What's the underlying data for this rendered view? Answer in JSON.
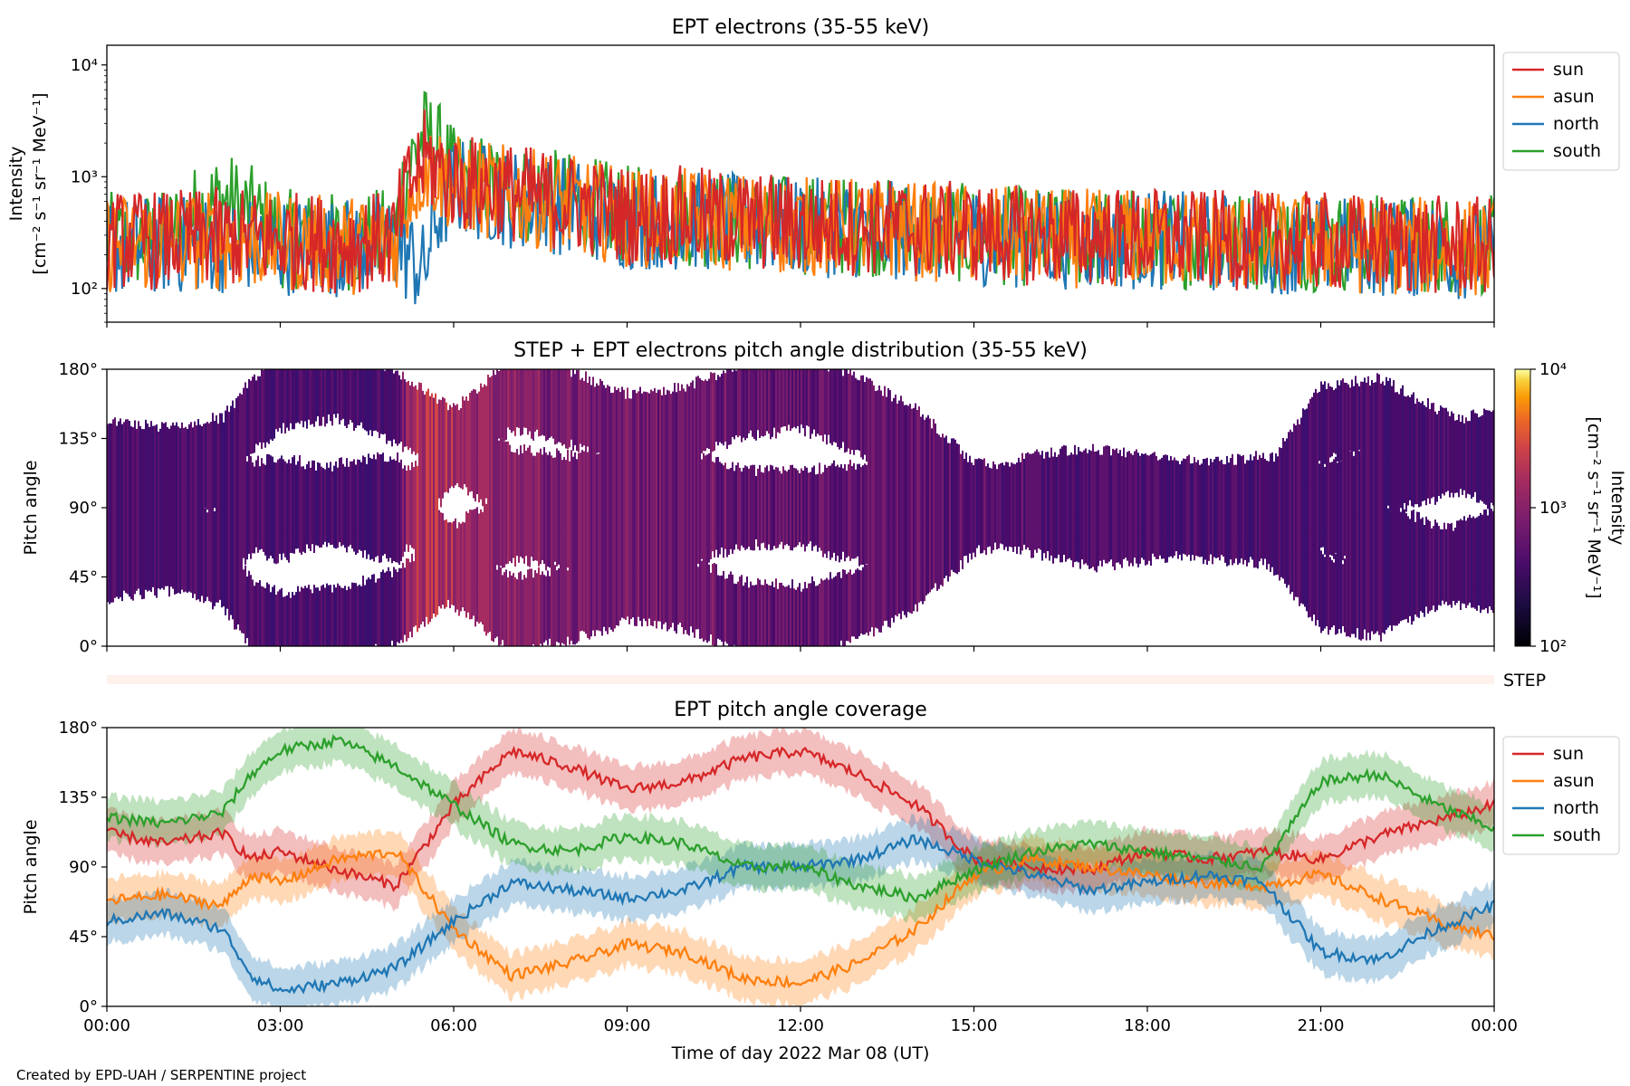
{
  "figure": {
    "credit": "Created by EPD-UAH / SERPENTINE project",
    "xlabel": "Time of day 2022 Mar 08 (UT)",
    "x_ticks": [
      "00:00",
      "03:00",
      "06:00",
      "09:00",
      "12:00",
      "15:00",
      "18:00",
      "21:00",
      "00:00"
    ]
  },
  "chart_data": [
    {
      "type": "line",
      "title": "EPT electrons (35-55 keV)",
      "ylabel_lines": [
        "Intensity",
        "[cm⁻² s⁻¹ sr⁻¹ MeV⁻¹]"
      ],
      "yscale": "log",
      "ylim": [
        50,
        15000
      ],
      "y_ticks": [
        "10²",
        "10³",
        "10⁴"
      ],
      "x_hours": [
        0,
        1,
        2,
        3,
        4,
        5,
        5.5,
        6,
        7,
        8,
        9,
        10,
        11,
        12,
        13,
        14,
        15,
        16,
        17,
        18,
        19,
        20,
        21,
        22,
        23,
        24
      ],
      "series": [
        {
          "name": "sun",
          "color": "#d62728",
          "values": [
            300,
            300,
            320,
            300,
            280,
            300,
            1600,
            1000,
            800,
            650,
            500,
            500,
            450,
            420,
            400,
            380,
            350,
            330,
            320,
            320,
            300,
            300,
            290,
            280,
            270,
            260
          ]
        },
        {
          "name": "asun",
          "color": "#ff7f0e",
          "values": [
            280,
            290,
            300,
            290,
            270,
            280,
            1400,
            950,
            750,
            620,
            480,
            470,
            430,
            400,
            390,
            360,
            340,
            320,
            310,
            310,
            300,
            290,
            280,
            270,
            260,
            250
          ]
        },
        {
          "name": "north",
          "color": "#1f77b4",
          "values": [
            260,
            270,
            280,
            270,
            260,
            270,
            150,
            900,
            700,
            600,
            450,
            450,
            420,
            390,
            380,
            350,
            330,
            310,
            300,
            300,
            290,
            280,
            270,
            260,
            250,
            240
          ]
        },
        {
          "name": "south",
          "color": "#2ca02c",
          "values": [
            290,
            300,
            700,
            310,
            290,
            320,
            2600,
            1100,
            800,
            660,
            500,
            490,
            440,
            410,
            400,
            370,
            340,
            320,
            310,
            320,
            300,
            300,
            290,
            280,
            280,
            270
          ]
        }
      ],
      "legend": "outside-right"
    },
    {
      "type": "heatmap",
      "title": "STEP + EPT electrons pitch angle distribution (35-55 keV)",
      "ylabel": "Pitch angle",
      "ylim": [
        0,
        180
      ],
      "y_ticks": [
        "0°",
        "45°",
        "90°",
        "135°",
        "180°"
      ],
      "colorbar": {
        "label_lines": [
          "Intensity",
          "[cm⁻² s⁻¹ sr⁻¹ MeV⁻¹]"
        ],
        "scale": "log",
        "range": [
          100,
          10000
        ],
        "ticks": [
          "10²",
          "10³",
          "10⁴"
        ],
        "colormap": "inferno"
      }
    },
    {
      "type": "bar",
      "label": "STEP",
      "color": "#fff1ec"
    },
    {
      "type": "line",
      "title": "EPT pitch angle coverage",
      "ylabel": "Pitch angle",
      "ylim": [
        0,
        180
      ],
      "y_ticks": [
        "0°",
        "45°",
        "90°",
        "135°",
        "180°"
      ],
      "x_hours": [
        0,
        1,
        2,
        2.5,
        3,
        4,
        5,
        6,
        7,
        8,
        9,
        10,
        11,
        12,
        13,
        14,
        15,
        16,
        17,
        18,
        19,
        20,
        21,
        22,
        23,
        24
      ],
      "series": [
        {
          "name": "sun",
          "color": "#d62728",
          "values": [
            112,
            105,
            112,
            95,
            100,
            88,
            78,
            130,
            165,
            155,
            140,
            145,
            160,
            165,
            150,
            130,
            95,
            90,
            88,
            100,
            95,
            100,
            95,
            110,
            120,
            130
          ]
        },
        {
          "name": "asun",
          "color": "#ff7f0e",
          "values": [
            68,
            72,
            65,
            85,
            80,
            95,
            100,
            50,
            20,
            28,
            40,
            35,
            18,
            15,
            28,
            50,
            85,
            95,
            90,
            85,
            80,
            78,
            85,
            70,
            55,
            45
          ]
        },
        {
          "name": "north",
          "color": "#1f77b4",
          "values": [
            55,
            60,
            50,
            20,
            10,
            15,
            25,
            55,
            80,
            75,
            70,
            75,
            90,
            90,
            95,
            108,
            95,
            85,
            75,
            80,
            85,
            80,
            35,
            30,
            50,
            65
          ]
        },
        {
          "name": "south",
          "color": "#2ca02c",
          "values": [
            122,
            118,
            125,
            150,
            165,
            172,
            155,
            130,
            105,
            100,
            110,
            105,
            90,
            90,
            78,
            70,
            88,
            100,
            105,
            100,
            95,
            90,
            145,
            150,
            130,
            115
          ]
        }
      ],
      "legend": "outside-right"
    }
  ]
}
